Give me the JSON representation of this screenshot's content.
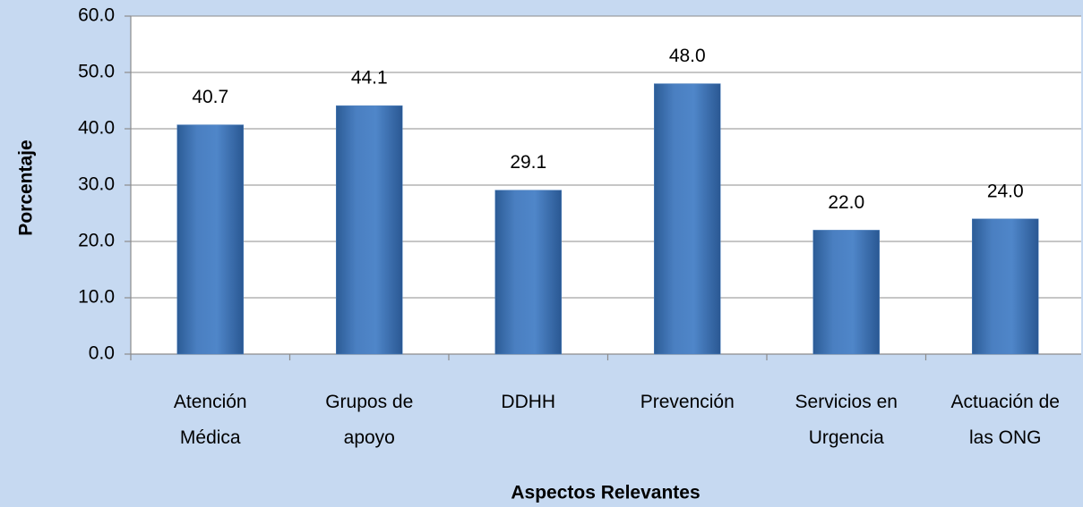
{
  "chart_data": {
    "type": "bar",
    "categories": [
      "Atención\nMédica",
      "Grupos de\napoyo",
      "DDHH",
      "Prevención",
      "Servicios en\nUrgencia",
      "Actuación de\nlas ONG"
    ],
    "values": [
      40.7,
      44.1,
      29.1,
      48.0,
      22.0,
      24.0
    ],
    "value_labels": [
      "40.7",
      "44.1",
      "29.1",
      "48.0",
      "22.0",
      "24.0"
    ],
    "color": "#4f81bd",
    "x_label": "Aspectos Relevantes",
    "y_label": "Porcentaje",
    "ylim": [
      0,
      60
    ],
    "yticks": [
      {
        "value": 0,
        "label": "0.0"
      },
      {
        "value": 10,
        "label": "10.0"
      },
      {
        "value": 20,
        "label": "20.0"
      },
      {
        "value": 30,
        "label": "30.0"
      },
      {
        "value": 40,
        "label": "40.0"
      },
      {
        "value": 50,
        "label": "50.0"
      },
      {
        "value": 60,
        "label": "60.0"
      }
    ],
    "grid": true
  }
}
